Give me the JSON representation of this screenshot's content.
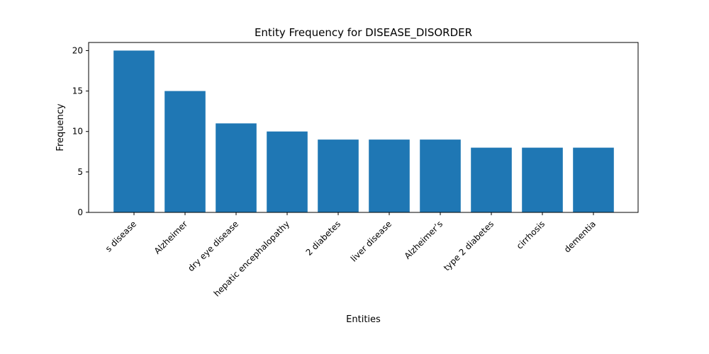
{
  "chart_data": {
    "type": "bar",
    "title": "Entity Frequency for DISEASE_DISORDER",
    "xlabel": "Entities",
    "ylabel": "Frequency",
    "categories": [
      "s disease",
      "Alzheimer",
      "dry eye disease",
      "hepatic encephalopathy",
      "2 diabetes",
      "liver disease",
      "Alzheimer’s",
      "type 2 diabetes",
      "cirrhosis",
      "dementia"
    ],
    "values": [
      20,
      15,
      11,
      10,
      9,
      9,
      9,
      8,
      8,
      8
    ],
    "ylim": [
      0,
      21
    ],
    "yticks": [
      0,
      5,
      10,
      15,
      20
    ],
    "bar_color": "#1f77b4",
    "grid": false
  }
}
